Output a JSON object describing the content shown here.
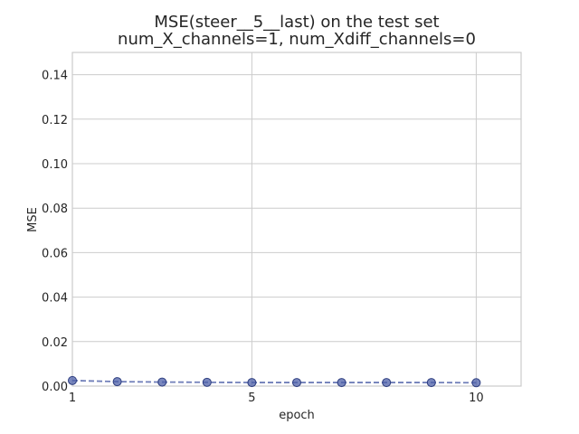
{
  "chart_data": {
    "type": "line",
    "title": "MSE(steer__5__last) on the test set",
    "subtitle": "num_X_channels=1, num_Xdiff_channels=0",
    "xlabel": "epoch",
    "ylabel": "MSE",
    "xlim": [
      1,
      11
    ],
    "ylim": [
      0,
      0.15
    ],
    "xticks": [
      1,
      5,
      10
    ],
    "yticks": [
      0.0,
      0.02,
      0.04,
      0.06,
      0.08,
      0.1,
      0.12,
      0.14
    ],
    "grid": true,
    "x": [
      1,
      2,
      3,
      4,
      5,
      6,
      7,
      8,
      9,
      10
    ],
    "series": [
      {
        "values": [
          0.0025,
          0.002,
          0.0018,
          0.0017,
          0.0016,
          0.0016,
          0.0016,
          0.0016,
          0.0016,
          0.0015
        ],
        "color": "#4c5fa8",
        "style": "dashed",
        "marker": "circle"
      }
    ]
  }
}
